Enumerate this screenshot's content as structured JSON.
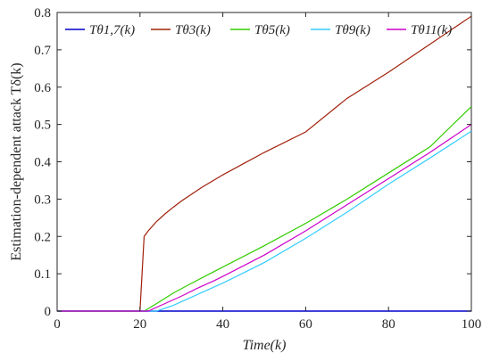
{
  "chart_data": {
    "type": "line",
    "xlabel": "Time(k)",
    "ylabel": "Estimation-dependent attack Tδ(k)",
    "xlim": [
      0,
      100
    ],
    "ylim": [
      0,
      0.8
    ],
    "xticks": [
      0,
      20,
      40,
      60,
      80,
      100
    ],
    "yticks": [
      0,
      0.1,
      0.2,
      0.3,
      0.4,
      0.5,
      0.6,
      0.7,
      0.8
    ],
    "xtick_labels": [
      "0",
      "20",
      "40",
      "60",
      "80",
      "100"
    ],
    "ytick_labels": [
      "0",
      "0.1",
      "0.2",
      "0.3",
      "0.4",
      "0.5",
      "0.6",
      "0.7",
      "0.8"
    ],
    "grid": false,
    "legend_position": "top",
    "series": [
      {
        "name": "Tθ1,7(k)",
        "color": "#0000cc",
        "x": [
          0,
          100
        ],
        "y": [
          0,
          0
        ]
      },
      {
        "name": "Tθ3(k)",
        "color": "#a0200a",
        "x": [
          0,
          20,
          21,
          22,
          24,
          26,
          28,
          30,
          35,
          40,
          45,
          50,
          60,
          70,
          80,
          90,
          100
        ],
        "y": [
          0,
          0,
          0.2,
          0.215,
          0.24,
          0.26,
          0.278,
          0.295,
          0.332,
          0.365,
          0.395,
          0.425,
          0.48,
          0.57,
          0.64,
          0.715,
          0.79
        ]
      },
      {
        "name": "Tθ5(k)",
        "color": "#33cc00",
        "x": [
          0,
          20,
          21,
          24,
          28,
          32,
          36,
          40,
          50,
          60,
          70,
          80,
          90,
          100
        ],
        "y": [
          0,
          0,
          0.0,
          0.02,
          0.048,
          0.072,
          0.095,
          0.118,
          0.175,
          0.235,
          0.3,
          0.37,
          0.44,
          0.548
        ]
      },
      {
        "name": "Tθ9(k)",
        "color": "#33ccff",
        "x": [
          0,
          20,
          24,
          28,
          32,
          36,
          40,
          50,
          60,
          70,
          80,
          90,
          100
        ],
        "y": [
          0,
          0,
          0.0,
          0.015,
          0.035,
          0.055,
          0.075,
          0.13,
          0.195,
          0.265,
          0.34,
          0.41,
          0.482
        ]
      },
      {
        "name": "Tθ11(k)",
        "color": "#cc00cc",
        "x": [
          0,
          20,
          22,
          26,
          30,
          34,
          38,
          40,
          50,
          60,
          70,
          80,
          90,
          100
        ],
        "y": [
          0,
          0,
          0.0,
          0.02,
          0.04,
          0.062,
          0.082,
          0.093,
          0.15,
          0.215,
          0.285,
          0.355,
          0.425,
          0.5
        ]
      }
    ]
  }
}
